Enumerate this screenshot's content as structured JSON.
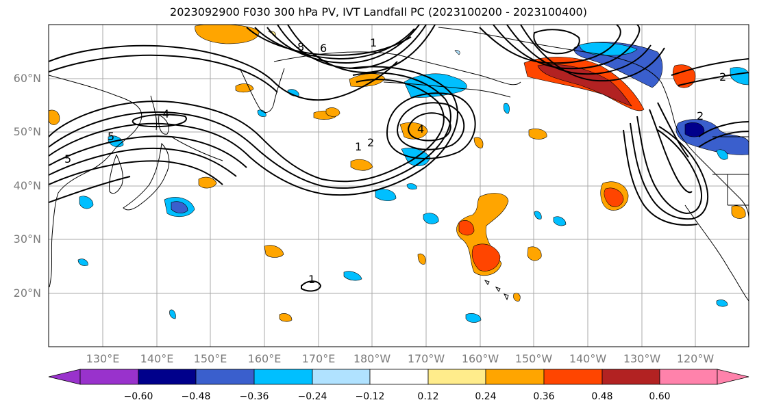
{
  "title": "2023092900 F030 300 hPa PV, IVT Landfall PC (2023100200 - 2023100400)",
  "latitude_labels": [
    "60°N",
    "50°N",
    "40°N",
    "30°N",
    "20°N"
  ],
  "longitude_labels": [
    "130°E",
    "140°E",
    "150°E",
    "160°E",
    "170°E",
    "180°W",
    "170°W",
    "160°W",
    "150°W",
    "140°W",
    "130°W",
    "120°W"
  ],
  "contour_labels": [
    "8",
    "6",
    "4",
    "5",
    "1",
    "2",
    "1",
    "4",
    "2",
    "5",
    "2",
    "1"
  ],
  "colorbar": {
    "tick_labels": [
      "−0.60",
      "−0.48",
      "−0.36",
      "−0.24",
      "−0.12",
      "0.12",
      "0.24",
      "0.36",
      "0.48",
      "0.60"
    ],
    "colors": [
      "#9932CC",
      "#00008B",
      "#3A5FCD",
      "#00BFFF",
      "#B0E2FF",
      "#FFFFFF",
      "#FFEC8B",
      "#FFA500",
      "#FF4500",
      "#B22222",
      "#FF82AB"
    ]
  },
  "map_colors": {
    "contour": "#000000",
    "grid": "#a0a0a0",
    "coast": "#000000"
  }
}
